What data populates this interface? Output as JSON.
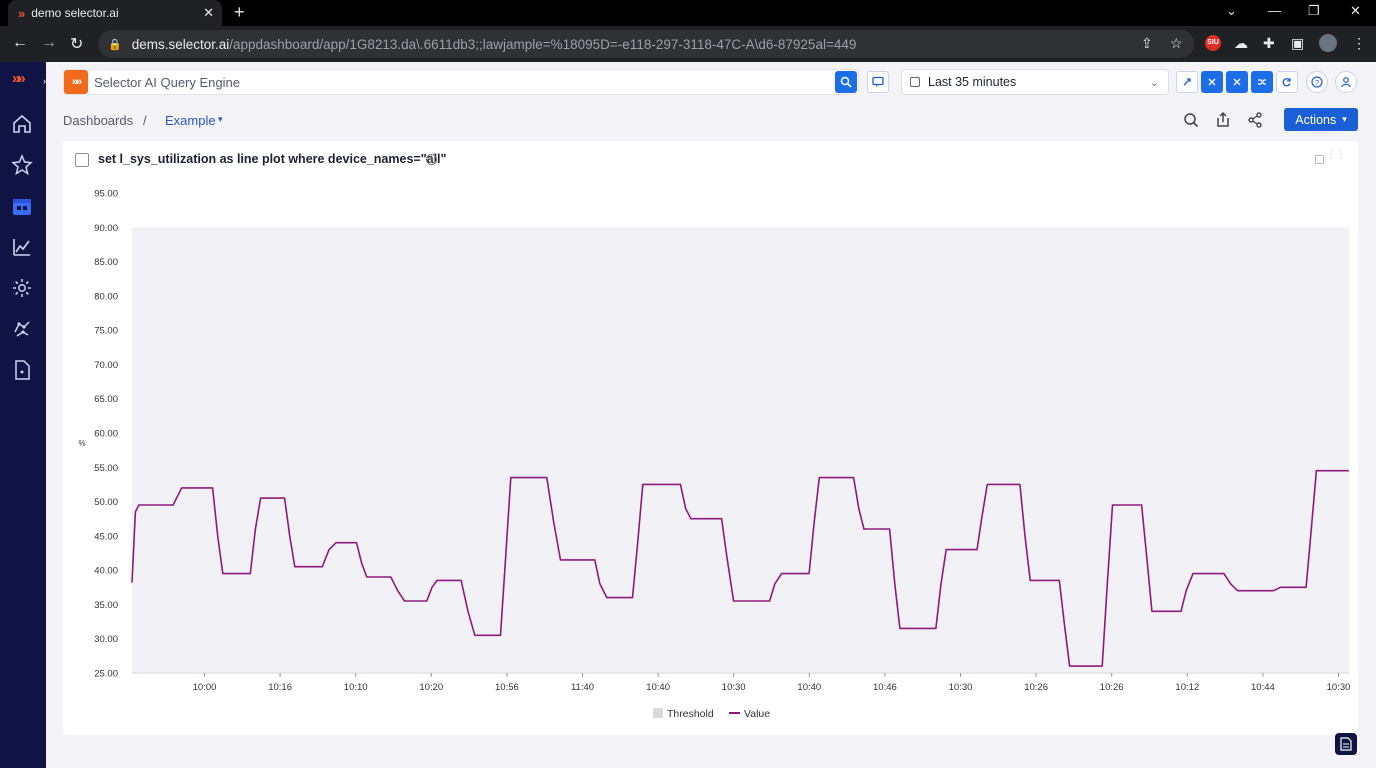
{
  "browser": {
    "tab_title": "demo selector.ai",
    "url_host": "dems.selector.ai",
    "url_path": "/appdashboard/app/1G8213.da\\.6611db3;;lawjample=%18095D=-e118-297-3118-47C-A\\d6-87925al=449",
    "extension_badge": "SIU"
  },
  "app": {
    "search": {
      "placeholder": "Selector AI Query Engine"
    },
    "time_range": "Last 35 minutes",
    "breadcrumb": {
      "root": "Dashboards",
      "separator": "/",
      "current": "Example"
    },
    "actions_label": "Actions"
  },
  "panel": {
    "title": "set l_sys_utilization as line plot where device_names=\"all\"",
    "info_glyph": "i"
  },
  "chart_data": {
    "type": "line",
    "title": "set l_sys_utilization as line plot where device_names=\"all\"",
    "ylabel": "%",
    "xlabel": "",
    "ylim": [
      25,
      95
    ],
    "yticks": [
      "95.00",
      "90.00",
      "85.00",
      "80.00",
      "75.00",
      "70.00",
      "65.00",
      "60.00",
      "55.00",
      "50.00",
      "45.00",
      "40.00",
      "35.00",
      "30.00",
      "25.00"
    ],
    "xtick_labels": [
      "10:00",
      "10:16",
      "10:10",
      "10:20",
      "10:56",
      "11:40",
      "10:40",
      "10:30",
      "10:40",
      "10:46",
      "10:30",
      "10:26",
      "10:26",
      "10:12",
      "10:44",
      "10:30"
    ],
    "threshold_band": [
      25,
      90
    ],
    "legend": [
      {
        "name": "Threshold",
        "color": "#dadada"
      },
      {
        "name": "Value",
        "color": "#8e1a7e"
      }
    ],
    "legend_position": "bottom-center",
    "grid": false,
    "series": [
      {
        "name": "Value",
        "color": "#8e1a7e",
        "points": [
          [
            0,
            38.2
          ],
          [
            2,
            48.5
          ],
          [
            4,
            49.5
          ],
          [
            24,
            49.5
          ],
          [
            27,
            51
          ],
          [
            29,
            52
          ],
          [
            47,
            52
          ],
          [
            50,
            45
          ],
          [
            53,
            39.5
          ],
          [
            69,
            39.5
          ],
          [
            72,
            46
          ],
          [
            75,
            50.5
          ],
          [
            89,
            50.5
          ],
          [
            92,
            45
          ],
          [
            95,
            40.5
          ],
          [
            111,
            40.5
          ],
          [
            115,
            43
          ],
          [
            119,
            44
          ],
          [
            131,
            44
          ],
          [
            134,
            41
          ],
          [
            137,
            39
          ],
          [
            151,
            39
          ],
          [
            155,
            37
          ],
          [
            159,
            35.5
          ],
          [
            172,
            35.5
          ],
          [
            175,
            37.5
          ],
          [
            178,
            38.5
          ],
          [
            192,
            38.5
          ],
          [
            196,
            34
          ],
          [
            200,
            30.5
          ],
          [
            215,
            30.5
          ],
          [
            218,
            42
          ],
          [
            221,
            53.5
          ],
          [
            242,
            53.5
          ],
          [
            246,
            47
          ],
          [
            250,
            41.5
          ],
          [
            270,
            41.5
          ],
          [
            273,
            38
          ],
          [
            277,
            36
          ],
          [
            292,
            36
          ],
          [
            295,
            44
          ],
          [
            298,
            52.5
          ],
          [
            320,
            52.5
          ],
          [
            323,
            49
          ],
          [
            326,
            47.5
          ],
          [
            344,
            47.5
          ],
          [
            347,
            42
          ],
          [
            351,
            35.5
          ],
          [
            372,
            35.5
          ],
          [
            375,
            38
          ],
          [
            379,
            39.5
          ],
          [
            395,
            39.5
          ],
          [
            398,
            47
          ],
          [
            401,
            53.5
          ],
          [
            421,
            53.5
          ],
          [
            424,
            49
          ],
          [
            427,
            46
          ],
          [
            442,
            46
          ],
          [
            445,
            38
          ],
          [
            448,
            31.5
          ],
          [
            469,
            31.5
          ],
          [
            472,
            38
          ],
          [
            475,
            43
          ],
          [
            493,
            43
          ],
          [
            496,
            48
          ],
          [
            499,
            52.5
          ],
          [
            518,
            52.5
          ],
          [
            521,
            45
          ],
          [
            524,
            38.5
          ],
          [
            541,
            38.5
          ],
          [
            544,
            32
          ],
          [
            547,
            26
          ],
          [
            566,
            26
          ],
          [
            569,
            38
          ],
          [
            572,
            49.5
          ],
          [
            589,
            49.5
          ],
          [
            592,
            42
          ],
          [
            595,
            34
          ],
          [
            612,
            34
          ],
          [
            615,
            37
          ],
          [
            619,
            39.5
          ],
          [
            637,
            39.5
          ],
          [
            641,
            38
          ],
          [
            645,
            37
          ],
          [
            666,
            37
          ],
          [
            670,
            37.5
          ],
          [
            685,
            37.5
          ],
          [
            688,
            46
          ],
          [
            691,
            54.5
          ],
          [
            710,
            54.5
          ]
        ]
      }
    ],
    "x_range": [
      0,
      710
    ]
  }
}
